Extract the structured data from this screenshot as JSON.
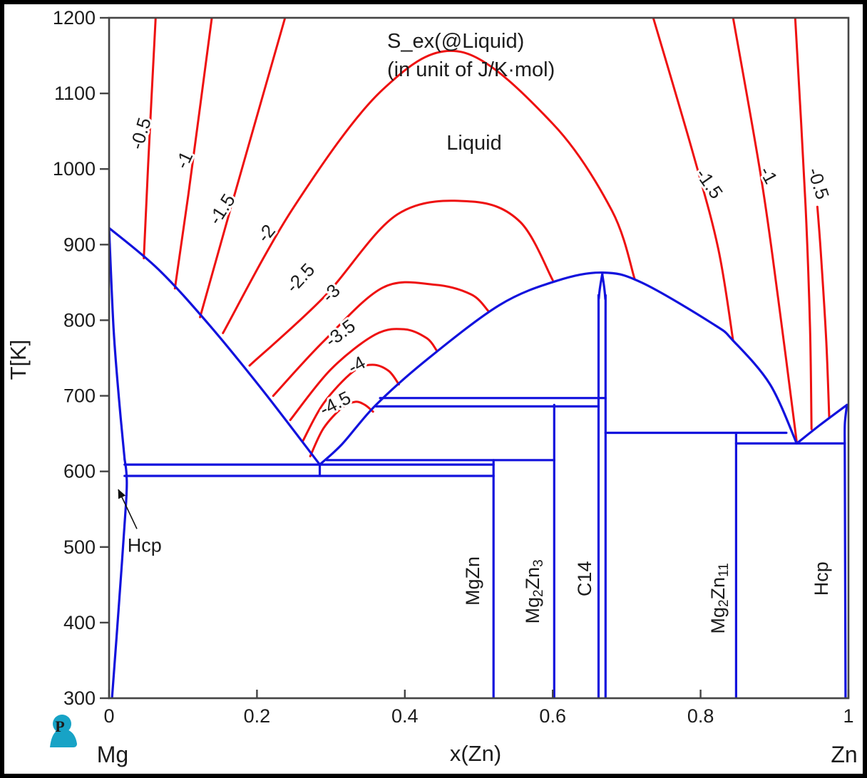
{
  "logo": {
    "letter": "P",
    "color": "#17a3c6"
  },
  "chart_data": {
    "type": "line",
    "title": "S_ex(@Liquid)",
    "subtitle": "(in unit of J/K·mol)",
    "xlabel": "x(Zn)",
    "ylabel": "T[K]",
    "region_label": "Liquid",
    "x_endpoint_labels": [
      "Mg",
      "Zn"
    ],
    "xlim": [
      0,
      1
    ],
    "ylim": [
      300,
      1200
    ],
    "grid": false,
    "colors": {
      "boundary": "#1212dd",
      "contour": "#ee1010",
      "axis": "#444444",
      "text": "#1c1c1c"
    },
    "x_ticks": [
      {
        "v": 0,
        "label": "0"
      },
      {
        "v": 0.2,
        "label": "0.2"
      },
      {
        "v": 0.4,
        "label": "0.4"
      },
      {
        "v": 0.6,
        "label": "0.6"
      },
      {
        "v": 0.8,
        "label": "0.8"
      },
      {
        "v": 1,
        "label": "1"
      }
    ],
    "y_ticks": [
      {
        "v": 1200,
        "label": "1200"
      },
      {
        "v": 1100,
        "label": "1100"
      },
      {
        "v": 1000,
        "label": "1000"
      },
      {
        "v": 900,
        "label": "900"
      },
      {
        "v": 800,
        "label": "800"
      },
      {
        "v": 700,
        "label": "700"
      },
      {
        "v": 600,
        "label": "600"
      },
      {
        "v": 500,
        "label": "500"
      },
      {
        "v": 400,
        "label": "400"
      },
      {
        "v": 300,
        "label": "300"
      }
    ],
    "boundaries": [
      {
        "name": "mg-liquidus",
        "smooth": true,
        "points": [
          [
            0,
            922
          ],
          [
            0.067,
            867
          ],
          [
            0.137,
            792
          ],
          [
            0.208,
            707
          ],
          [
            0.285,
            609
          ]
        ]
      },
      {
        "name": "mg-solidus",
        "smooth": true,
        "points": [
          [
            0,
            922
          ],
          [
            0.006,
            790
          ],
          [
            0.013,
            700
          ],
          [
            0.021,
            616
          ]
        ]
      },
      {
        "name": "mg-hcp-solvus",
        "smooth": true,
        "points": [
          [
            0.021,
            616
          ],
          [
            0.0235,
            596
          ],
          [
            0.023,
            560
          ],
          [
            0.013,
            420
          ],
          [
            0.004,
            300
          ]
        ]
      },
      {
        "name": "mid-liquidus-c14-dome",
        "smooth": true,
        "points": [
          [
            0.285,
            609
          ],
          [
            0.315,
            636
          ],
          [
            0.361,
            688
          ],
          [
            0.43,
            748
          ],
          [
            0.528,
            820
          ],
          [
            0.605,
            852
          ],
          [
            0.667,
            863
          ],
          [
            0.72,
            850
          ],
          [
            0.817,
            795
          ],
          [
            0.844,
            773
          ],
          [
            0.894,
            715
          ],
          [
            0.93,
            637
          ]
        ]
      },
      {
        "name": "zn-liquidus",
        "smooth": true,
        "points": [
          [
            0.93,
            637
          ],
          [
            0.961,
            661
          ],
          [
            0.998,
            688
          ]
        ]
      },
      {
        "name": "c14-left-boundary",
        "smooth": true,
        "points": [
          [
            0.667,
            861
          ],
          [
            0.6625,
            830
          ],
          [
            0.662,
            780
          ],
          [
            0.662,
            300
          ]
        ]
      },
      {
        "name": "c14-right-boundary",
        "smooth": true,
        "points": [
          [
            0.667,
            861
          ],
          [
            0.671,
            830
          ],
          [
            0.6715,
            780
          ],
          [
            0.6715,
            300
          ]
        ]
      },
      {
        "name": "mgzn-line",
        "smooth": false,
        "points": [
          [
            0.52,
            615
          ],
          [
            0.52,
            300
          ]
        ]
      },
      {
        "name": "mg2zn3-line",
        "smooth": false,
        "points": [
          [
            0.602,
            688
          ],
          [
            0.602,
            300
          ]
        ]
      },
      {
        "name": "mg2zn11-line",
        "smooth": false,
        "points": [
          [
            0.848,
            651
          ],
          [
            0.848,
            300
          ]
        ]
      },
      {
        "name": "zn-solidus",
        "smooth": true,
        "points": [
          [
            0.998,
            688
          ],
          [
            0.9952,
            664
          ],
          [
            0.995,
            637
          ]
        ]
      },
      {
        "name": "zn-hcp-solvus",
        "smooth": false,
        "points": [
          [
            0.995,
            637
          ],
          [
            0.996,
            300
          ]
        ]
      },
      {
        "name": "eutectoid-box",
        "smooth": false,
        "points": [
          [
            0.285,
            609
          ],
          [
            0.285,
            594
          ]
        ]
      },
      {
        "name": "invariant-697K",
        "smooth": false,
        "points": [
          [
            0.3665,
            697
          ],
          [
            0.6715,
            697
          ]
        ]
      },
      {
        "name": "invariant-686K",
        "smooth": false,
        "points": [
          [
            0.361,
            686
          ],
          [
            0.662,
            686
          ]
        ]
      },
      {
        "name": "invariant-651K",
        "smooth": false,
        "points": [
          [
            0.6715,
            651
          ],
          [
            0.916,
            651
          ]
        ]
      },
      {
        "name": "invariant-637K",
        "smooth": false,
        "points": [
          [
            0.848,
            637
          ],
          [
            0.995,
            637
          ]
        ]
      },
      {
        "name": "invariant-615K",
        "smooth": false,
        "points": [
          [
            0.294,
            615
          ],
          [
            0.602,
            615
          ]
        ]
      },
      {
        "name": "invariant-609K",
        "smooth": false,
        "points": [
          [
            0.021,
            609
          ],
          [
            0.52,
            609
          ]
        ]
      },
      {
        "name": "invariant-594K",
        "smooth": false,
        "points": [
          [
            0.021,
            594
          ],
          [
            0.52,
            594
          ]
        ]
      }
    ],
    "contours": [
      {
        "level": "-0.5",
        "side": "left",
        "points": [
          [
            0.063,
            1200
          ],
          [
            0.053,
            1010
          ],
          [
            0.047,
            882
          ]
        ]
      },
      {
        "level": "-1",
        "side": "left",
        "points": [
          [
            0.139,
            1200
          ],
          [
            0.107,
            965
          ],
          [
            0.089,
            842
          ]
        ]
      },
      {
        "level": "-1.5",
        "side": "left",
        "points": [
          [
            0.238,
            1200
          ],
          [
            0.165,
            950
          ],
          [
            0.123,
            804
          ]
        ]
      },
      {
        "level": "-2",
        "side": "left-arch",
        "points": [
          [
            0.154,
            783
          ],
          [
            0.25,
            950
          ],
          [
            0.37,
            1105
          ],
          [
            0.476,
            1155
          ],
          [
            0.6,
            1060
          ],
          [
            0.68,
            945
          ],
          [
            0.711,
            854
          ]
        ]
      },
      {
        "level": "-2.5",
        "side": "arch",
        "points": [
          [
            0.19,
            740
          ],
          [
            0.29,
            830
          ],
          [
            0.39,
            940
          ],
          [
            0.49,
            957
          ],
          [
            0.556,
            930
          ],
          [
            0.6,
            853
          ]
        ]
      },
      {
        "level": "-3",
        "side": "arch",
        "points": [
          [
            0.222,
            700
          ],
          [
            0.29,
            772
          ],
          [
            0.37,
            843
          ],
          [
            0.44,
            847
          ],
          [
            0.49,
            834
          ],
          [
            0.513,
            812
          ]
        ]
      },
      {
        "level": "-3.5",
        "side": "arch",
        "points": [
          [
            0.245,
            668
          ],
          [
            0.3,
            735
          ],
          [
            0.36,
            781
          ],
          [
            0.4,
            788
          ],
          [
            0.43,
            776
          ],
          [
            0.443,
            760
          ]
        ]
      },
      {
        "level": "-4",
        "side": "arch",
        "points": [
          [
            0.262,
            640
          ],
          [
            0.29,
            690
          ],
          [
            0.33,
            732
          ],
          [
            0.356,
            741
          ],
          [
            0.378,
            733
          ],
          [
            0.392,
            715
          ]
        ]
      },
      {
        "level": "-4.5",
        "side": "arch",
        "points": [
          [
            0.272,
            620
          ],
          [
            0.29,
            657
          ],
          [
            0.315,
            684
          ],
          [
            0.333,
            692
          ],
          [
            0.346,
            688
          ],
          [
            0.357,
            679
          ]
        ]
      },
      {
        "level": "-1.5",
        "side": "right",
        "points": [
          [
            0.736,
            1200
          ],
          [
            0.79,
            1020
          ],
          [
            0.824,
            894
          ],
          [
            0.844,
            773
          ]
        ]
      },
      {
        "level": "-1",
        "side": "right",
        "points": [
          [
            0.844,
            1200
          ],
          [
            0.882,
            988
          ],
          [
            0.905,
            828
          ],
          [
            0.93,
            639
          ]
        ]
      },
      {
        "level": "-0.5",
        "side": "right",
        "points": [
          [
            0.928,
            1200
          ],
          [
            0.942,
            950
          ],
          [
            0.948,
            790
          ],
          [
            0.95,
            656
          ]
        ]
      },
      {
        "level": "",
        "side": "right-short",
        "points": [
          [
            0.958,
            950
          ],
          [
            0.963,
            884
          ],
          [
            0.97,
            772
          ],
          [
            0.974,
            672
          ]
        ]
      }
    ],
    "contour_labels": [
      {
        "text": "-0.5",
        "x": 0.0424,
        "T": 1047,
        "rot": -73
      },
      {
        "text": "-1",
        "x": 0.1013,
        "T": 1012,
        "rot": -65
      },
      {
        "text": "-1.5",
        "x": 0.1524,
        "T": 947,
        "rot": -57
      },
      {
        "text": "-2",
        "x": 0.2122,
        "T": 915,
        "rot": -51
      },
      {
        "text": "-2.5",
        "x": 0.2584,
        "T": 856,
        "rot": -47
      },
      {
        "text": "-3",
        "x": 0.3,
        "T": 836,
        "rot": -44
      },
      {
        "text": "-3.5",
        "x": 0.3124,
        "T": 783,
        "rot": -37
      },
      {
        "text": "-4",
        "x": 0.3346,
        "T": 741,
        "rot": -29
      },
      {
        "text": "-4.5",
        "x": 0.3057,
        "T": 690,
        "rot": -27
      },
      {
        "text": "-1.5",
        "x": 0.812,
        "T": 981,
        "rot": 55
      },
      {
        "text": "-1",
        "x": 0.892,
        "T": 992,
        "rot": 62
      },
      {
        "text": "-0.5",
        "x": 0.9595,
        "T": 981,
        "rot": 72
      }
    ],
    "phase_labels": [
      {
        "name": "MgZn",
        "x": 0.492,
        "T": 455,
        "parts": [
          [
            "MgZn",
            false
          ]
        ]
      },
      {
        "name": "Mg2Zn3",
        "x": 0.5728,
        "T": 441,
        "parts": [
          [
            "Mg",
            false
          ],
          [
            "2",
            true
          ],
          [
            "Zn",
            false
          ],
          [
            "3",
            true
          ]
        ]
      },
      {
        "name": "C14",
        "x": 0.6432,
        "T": 458,
        "parts": [
          [
            "C14",
            false
          ]
        ]
      },
      {
        "name": "Mg2Zn11",
        "x": 0.8235,
        "T": 432,
        "parts": [
          [
            "Mg",
            false
          ],
          [
            "2",
            true
          ],
          [
            "Zn",
            false
          ],
          [
            "11",
            true
          ]
        ]
      },
      {
        "name": "Hcp",
        "x": 0.9634,
        "T": 458,
        "parts": [
          [
            "Hcp",
            false
          ]
        ]
      }
    ],
    "hcp_annotation": {
      "text": "Hcp",
      "label_x": 0.048,
      "label_T": 503,
      "arrow_from": [
        0.0376,
        524
      ],
      "arrow_to": [
        0.0125,
        576
      ]
    }
  }
}
